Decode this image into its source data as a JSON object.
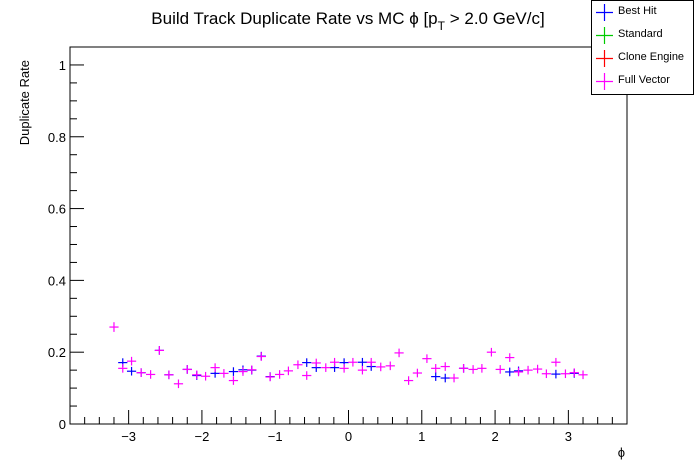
{
  "chart_data": {
    "type": "scatter",
    "title": "Build Track Duplicate Rate vs MC ϕ [p",
    "title_sub": "T",
    "title_tail": " > 2.0 GeV/c]",
    "xlabel": "ϕ",
    "ylabel": "Duplicate Rate",
    "xlim": [
      -3.8,
      3.8
    ],
    "ylim": [
      0,
      1.05
    ],
    "x_ticks": [
      -3,
      -2,
      -1,
      0,
      1,
      2,
      3
    ],
    "x_tick_labels": [
      "−3",
      "−2",
      "−1",
      "0",
      "1",
      "2",
      "3"
    ],
    "y_ticks": [
      0,
      0.2,
      0.4,
      0.6,
      0.8,
      1
    ],
    "y_tick_labels": [
      "0",
      "0.2",
      "0.4",
      "0.6",
      "0.8",
      "1"
    ],
    "legend_position": "top-right",
    "x_bin_half_width": 0.0628,
    "series": [
      {
        "name": "Best Hit",
        "color": "#0000ff",
        "x": [
          -3.08,
          -2.96,
          -2.83,
          -2.58,
          -2.45,
          -2.2,
          -2.07,
          -1.82,
          -1.57,
          -1.44,
          -1.32,
          -1.19,
          -1.07,
          -0.57,
          -0.44,
          -0.19,
          -0.06,
          0.19,
          0.31,
          1.19,
          1.32,
          1.57,
          2.2,
          2.32,
          2.83,
          3.08
        ],
        "y": [
          0.171,
          0.147,
          0.143,
          0.205,
          0.137,
          0.152,
          0.135,
          0.141,
          0.146,
          0.151,
          0.15,
          0.189,
          0.132,
          0.171,
          0.157,
          0.157,
          0.171,
          0.172,
          0.16,
          0.132,
          0.128,
          0.155,
          0.145,
          0.148,
          0.139,
          0.141
        ]
      },
      {
        "name": "Standard",
        "color": "#00cc00",
        "x": [],
        "y": []
      },
      {
        "name": "Clone Engine",
        "color": "#ff0000",
        "x": [],
        "y": []
      },
      {
        "name": "Full Vector",
        "color": "#ff00ff",
        "x": [
          -3.2,
          -3.08,
          -2.96,
          -2.83,
          -2.7,
          -2.58,
          -2.45,
          -2.32,
          -2.2,
          -2.07,
          -1.95,
          -1.82,
          -1.7,
          -1.57,
          -1.44,
          -1.32,
          -1.19,
          -1.07,
          -0.94,
          -0.82,
          -0.69,
          -0.57,
          -0.44,
          -0.31,
          -0.19,
          -0.06,
          0.06,
          0.19,
          0.31,
          0.44,
          0.57,
          0.69,
          0.82,
          0.94,
          1.07,
          1.19,
          1.32,
          1.44,
          1.57,
          1.7,
          1.82,
          1.95,
          2.07,
          2.2,
          2.32,
          2.45,
          2.58,
          2.7,
          2.83,
          2.96,
          3.08,
          3.2
        ],
        "y": [
          0.27,
          0.155,
          0.175,
          0.143,
          0.138,
          0.205,
          0.137,
          0.112,
          0.152,
          0.137,
          0.133,
          0.157,
          0.141,
          0.121,
          0.146,
          0.151,
          0.188,
          0.131,
          0.138,
          0.148,
          0.165,
          0.135,
          0.17,
          0.157,
          0.172,
          0.155,
          0.172,
          0.15,
          0.172,
          0.159,
          0.162,
          0.198,
          0.121,
          0.142,
          0.182,
          0.155,
          0.16,
          0.128,
          0.155,
          0.152,
          0.155,
          0.2,
          0.152,
          0.185,
          0.145,
          0.15,
          0.153,
          0.14,
          0.172,
          0.14,
          0.143,
          0.137
        ]
      }
    ]
  }
}
